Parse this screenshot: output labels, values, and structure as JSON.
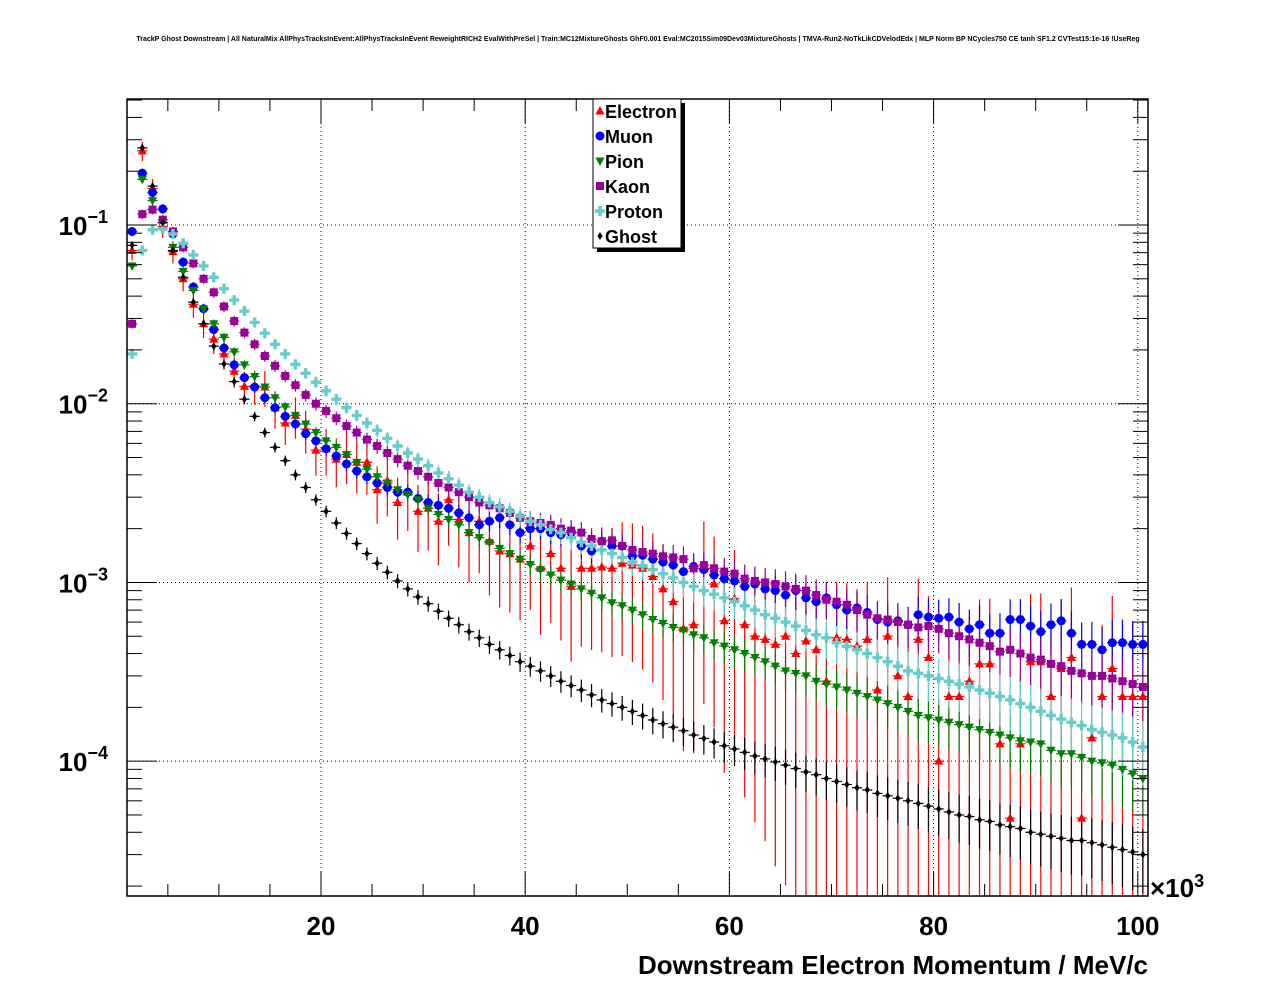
{
  "chart_data": {
    "type": "scatter",
    "title": "TrackP Ghost Downstream | All NaturalMix AllPhysTracksInEvent:AllPhysTracksInEvent ReweightRICH2 EvalWithPreSel | Train:MC12MixtureGhosts GhF0.001 Eval:MC2015Sim09Dev03MixtureGhosts | TMVA-Run2-NoTkLikCDVelodEdx | MLP Norm BP NCycles750 CE tanh SF1.2 CVTest15:1e-16 !UseReg",
    "xlabel": "Downstream Electron Momentum / MeV/c",
    "ylabel": "",
    "x_multiplier_label": "×10",
    "x_multiplier_exp": "3",
    "xlim": [
      1,
      101
    ],
    "ylim": [
      1.76e-05,
      0.507
    ],
    "yscale": "log",
    "grid": true,
    "legend_position": "top-center",
    "x_ticks": [
      {
        "value": 20,
        "label": "20"
      },
      {
        "value": 40,
        "label": "40"
      },
      {
        "value": 60,
        "label": "60"
      },
      {
        "value": 80,
        "label": "80"
      },
      {
        "value": 100,
        "label": "100"
      }
    ],
    "y_ticks": [
      {
        "value": 0.1,
        "base": "10",
        "exp": "−1"
      },
      {
        "value": 0.01,
        "base": "10",
        "exp": "−2"
      },
      {
        "value": 0.001,
        "base": "10",
        "exp": "−3"
      },
      {
        "value": 0.0001,
        "base": "10",
        "exp": "−4"
      }
    ],
    "bin_start": 1.5,
    "bin_width": 1.0,
    "series": [
      {
        "name": "Electron",
        "color": "#ff0000",
        "marker": "triangle-up",
        "values": [
          0.072,
          0.26,
          0.16,
          0.098,
          0.071,
          0.05,
          0.036,
          0.028,
          0.023,
          0.019,
          0.0152,
          0.0125,
          0.0126,
          0.0124,
          0.0095,
          0.0078,
          0.0086,
          0.0072,
          0.0055,
          0.0056,
          0.0049,
          0.0052,
          0.0047,
          0.0047,
          0.0033,
          0.0037,
          0.0028,
          0.0032,
          0.0025,
          0.0026,
          0.0022,
          0.0029,
          0.00225,
          0.0019,
          0.0022,
          0.0017,
          0.0015,
          0.00145,
          0.00135,
          0.0016,
          0.0012,
          0.00145,
          0.0012,
          0.00095,
          0.0012,
          0.0012,
          0.00122,
          0.0012,
          0.00128,
          0.00125,
          0.0012,
          0.00108,
          0.00092,
          0.00078,
          0.00055,
          0.00058,
          0.0012,
          0.00098,
          0.00061,
          0.00081,
          0.00058,
          0.0005,
          0.00048,
          0.00045,
          0.0005,
          0.0004,
          0.00047,
          0.00042,
          0.00028,
          0.00049,
          0.00048,
          0.00044,
          0.00048,
          0.00025,
          0.0005,
          0.0003,
          0.00023,
          0.00048,
          0.00038,
          0.0001,
          0.00023,
          0.00023,
          0.00028,
          0.00035,
          0.00035,
          0.000125,
          4.8e-05,
          0.000125,
          0.00036,
          0.00036,
          0.00023,
          0.00033,
          0.00038,
          4.8e-05,
          0.000135,
          0.00023,
          0.00033,
          0.00023,
          0.00023,
          0.00023
        ]
      },
      {
        "name": "Muon",
        "color": "#0000ff",
        "marker": "circle",
        "values": [
          0.092,
          0.195,
          0.152,
          0.123,
          0.089,
          0.062,
          0.045,
          0.034,
          0.026,
          0.0205,
          0.0165,
          0.014,
          0.0124,
          0.0108,
          0.0095,
          0.0085,
          0.0077,
          0.0068,
          0.0062,
          0.0056,
          0.0051,
          0.0046,
          0.0042,
          0.0039,
          0.0036,
          0.0034,
          0.0032,
          0.0032,
          0.00295,
          0.0028,
          0.0027,
          0.0026,
          0.00245,
          0.0023,
          0.0021,
          0.0022,
          0.0023,
          0.0021,
          0.0019,
          0.002,
          0.002,
          0.0019,
          0.00185,
          0.0019,
          0.0016,
          0.0015,
          0.0017,
          0.0016,
          0.0016,
          0.0014,
          0.00142,
          0.00135,
          0.0013,
          0.00125,
          0.00115,
          0.00123,
          0.00118,
          0.0011,
          0.00105,
          0.00102,
          0.00095,
          0.00098,
          0.00092,
          0.0009,
          0.00085,
          0.0009,
          0.00082,
          0.00078,
          0.00082,
          0.00075,
          0.0007,
          0.00072,
          0.00068,
          0.00062,
          0.0006,
          0.00061,
          0.00058,
          0.00066,
          0.00064,
          0.00063,
          0.00064,
          0.0006,
          0.00055,
          0.00058,
          0.00052,
          0.00052,
          0.00062,
          0.00062,
          0.00057,
          0.00053,
          0.00058,
          0.00061,
          0.00052,
          0.00045,
          0.00045,
          0.00042,
          0.00046,
          0.00046,
          0.00045,
          0.00045
        ]
      },
      {
        "name": "Pion",
        "color": "#008000",
        "marker": "triangle-down",
        "values": [
          0.059,
          0.18,
          0.137,
          0.103,
          0.075,
          0.055,
          0.043,
          0.034,
          0.028,
          0.0235,
          0.0195,
          0.0165,
          0.0142,
          0.0124,
          0.0108,
          0.0096,
          0.0086,
          0.0077,
          0.0069,
          0.0062,
          0.0057,
          0.0052,
          0.0047,
          0.0043,
          0.0039,
          0.0036,
          0.0033,
          0.0031,
          0.0029,
          0.0026,
          0.0024,
          0.00225,
          0.0021,
          0.0019,
          0.00178,
          0.00167,
          0.00155,
          0.00145,
          0.00135,
          0.00126,
          0.00118,
          0.0011,
          0.00103,
          0.00098,
          0.00092,
          0.00087,
          0.00082,
          0.00077,
          0.00074,
          0.0007,
          0.00066,
          0.00062,
          0.00059,
          0.00056,
          0.00054,
          0.00051,
          0.00049,
          0.00046,
          0.00044,
          0.00042,
          0.0004,
          0.00038,
          0.00036,
          0.00034,
          0.00032,
          0.00031,
          0.0003,
          0.00028,
          0.00027,
          0.00026,
          0.00025,
          0.00024,
          0.00023,
          0.00022,
          0.00021,
          0.0002,
          0.00019,
          0.00018,
          0.000175,
          0.00017,
          0.000165,
          0.00016,
          0.000155,
          0.00015,
          0.000145,
          0.00014,
          0.000135,
          0.00013,
          0.000128,
          0.000125,
          0.000115,
          0.00011,
          0.00011,
          0.000105,
          0.0001,
          9.8e-05,
          9.5e-05,
          9e-05,
          8.5e-05,
          8e-05
        ]
      },
      {
        "name": "Kaon",
        "color": "#990099",
        "marker": "square",
        "values": [
          0.028,
          0.115,
          0.122,
          0.107,
          0.092,
          0.075,
          0.061,
          0.05,
          0.042,
          0.035,
          0.029,
          0.025,
          0.0215,
          0.0185,
          0.0163,
          0.0143,
          0.0127,
          0.0112,
          0.01,
          0.0091,
          0.0083,
          0.0075,
          0.0069,
          0.0063,
          0.0058,
          0.0053,
          0.0049,
          0.0045,
          0.0042,
          0.0039,
          0.0036,
          0.0034,
          0.0032,
          0.003,
          0.0028,
          0.0027,
          0.0026,
          0.00245,
          0.0023,
          0.0022,
          0.00215,
          0.0021,
          0.002,
          0.00195,
          0.0019,
          0.00175,
          0.0017,
          0.00172,
          0.0016,
          0.00152,
          0.00148,
          0.00145,
          0.0014,
          0.00138,
          0.00135,
          0.0012,
          0.00125,
          0.0012,
          0.00115,
          0.00112,
          0.00105,
          0.00102,
          0.001,
          0.00098,
          0.00095,
          0.00092,
          0.0009,
          0.00085,
          0.0008,
          0.00078,
          0.00075,
          0.0007,
          0.00066,
          0.00063,
          0.00062,
          0.0006,
          0.00058,
          0.00056,
          0.00057,
          0.00055,
          0.00052,
          0.0005,
          0.00048,
          0.00046,
          0.00044,
          0.00041,
          0.00042,
          0.0004,
          0.00038,
          0.00037,
          0.00035,
          0.00034,
          0.00032,
          0.00031,
          0.0003,
          0.0003,
          0.00029,
          0.00028,
          0.00027,
          0.00026
        ]
      },
      {
        "name": "Proton",
        "color": "#66cccc",
        "marker": "cross",
        "values": [
          0.019,
          0.072,
          0.094,
          0.095,
          0.089,
          0.079,
          0.068,
          0.059,
          0.051,
          0.044,
          0.038,
          0.033,
          0.0285,
          0.0248,
          0.0215,
          0.019,
          0.0166,
          0.0148,
          0.0132,
          0.0118,
          0.0106,
          0.0095,
          0.0086,
          0.0078,
          0.0071,
          0.0064,
          0.0058,
          0.0053,
          0.0049,
          0.0045,
          0.0041,
          0.0038,
          0.0035,
          0.0032,
          0.003,
          0.0028,
          0.00265,
          0.0025,
          0.00235,
          0.0022,
          0.0021,
          0.00198,
          0.0019,
          0.00178,
          0.00168,
          0.0016,
          0.00152,
          0.00145,
          0.00138,
          0.0013,
          0.00124,
          0.00118,
          0.00112,
          0.00106,
          0.001,
          0.00095,
          0.0009,
          0.00086,
          0.00082,
          0.00078,
          0.00074,
          0.0007,
          0.00066,
          0.00063,
          0.0006,
          0.00057,
          0.00054,
          0.00051,
          0.00049,
          0.00046,
          0.00044,
          0.00042,
          0.0004,
          0.00038,
          0.00036,
          0.00034,
          0.00032,
          0.00031,
          0.0003,
          0.00029,
          0.00028,
          0.00027,
          0.00026,
          0.00025,
          0.00024,
          0.00023,
          0.00022,
          0.00021,
          0.0002,
          0.00019,
          0.00018,
          0.000172,
          0.000165,
          0.000158,
          0.00015,
          0.000145,
          0.00014,
          0.000135,
          0.000128,
          0.00012
        ]
      },
      {
        "name": "Ghost",
        "color": "#000000",
        "marker": "diamond",
        "values": [
          0.077,
          0.27,
          0.165,
          0.103,
          0.072,
          0.051,
          0.037,
          0.028,
          0.021,
          0.0167,
          0.0133,
          0.0106,
          0.0085,
          0.0069,
          0.0057,
          0.0048,
          0.004,
          0.0034,
          0.0029,
          0.0025,
          0.00215,
          0.00188,
          0.00165,
          0.00145,
          0.00128,
          0.00114,
          0.00102,
          0.00092,
          0.00083,
          0.00076,
          0.00069,
          0.00063,
          0.00058,
          0.00053,
          0.00049,
          0.00045,
          0.00042,
          0.00039,
          0.00036,
          0.00034,
          0.00032,
          0.0003,
          0.00028,
          0.000265,
          0.00025,
          0.000235,
          0.00022,
          0.00021,
          0.0002,
          0.00019,
          0.00018,
          0.00017,
          0.000162,
          0.000155,
          0.000148,
          0.00014,
          0.000134,
          0.000128,
          0.000122,
          0.000117,
          0.000112,
          0.000107,
          0.000103,
          9.9e-05,
          9.5e-05,
          9.1e-05,
          8.7e-05,
          8.4e-05,
          8e-05,
          7.7e-05,
          7.4e-05,
          7.1e-05,
          6.9e-05,
          6.6e-05,
          6.4e-05,
          6.2e-05,
          6e-05,
          5.8e-05,
          5.6e-05,
          5.4e-05,
          5.2e-05,
          5e-05,
          4.9e-05,
          4.7e-05,
          4.6e-05,
          4.4e-05,
          4.3e-05,
          4.2e-05,
          4e-05,
          3.9e-05,
          3.8e-05,
          3.7e-05,
          3.6e-05,
          3.6e-05,
          3.5e-05,
          3.4e-05,
          3.3e-05,
          3.2e-05,
          3.1e-05,
          3e-05
        ]
      }
    ]
  }
}
